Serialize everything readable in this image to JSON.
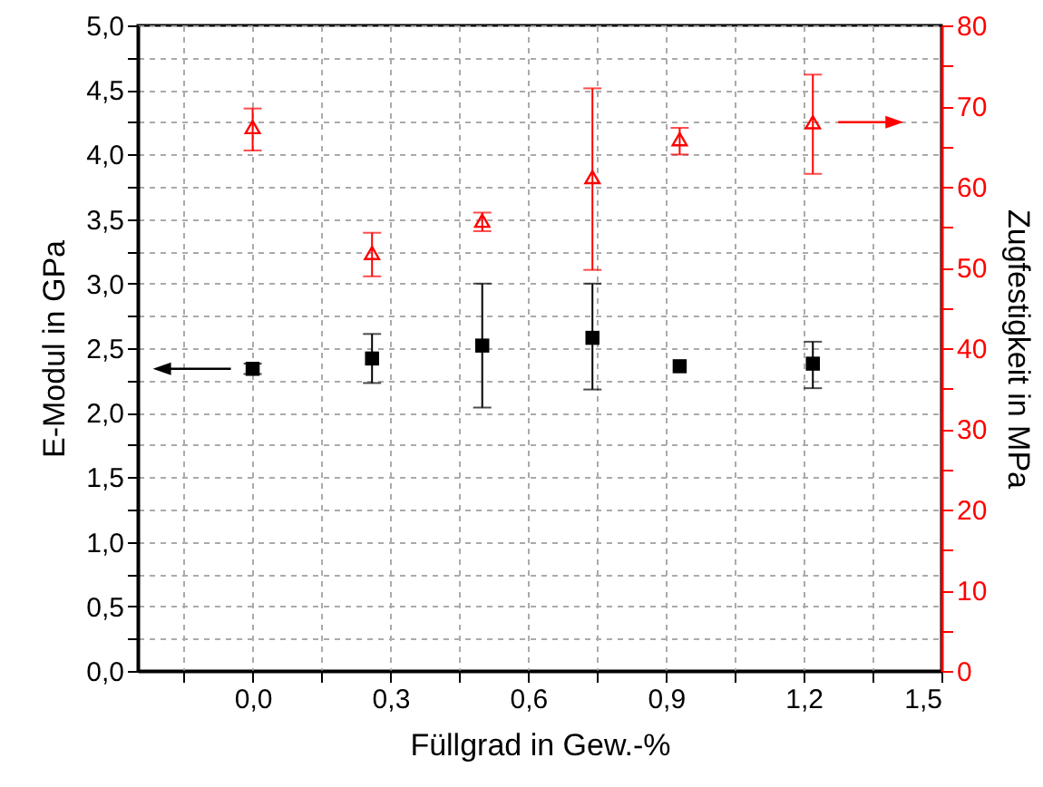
{
  "chart_data": {
    "type": "scatter",
    "xlabel": "Füllgrad in Gew.-%",
    "ylabel": "E-Modul in GPa",
    "y2label": "Zugfestigkeit in MPa",
    "x": [
      0.0,
      0.26,
      0.5,
      0.74,
      0.93,
      1.22
    ],
    "series": [
      {
        "color": "#000000",
        "marker": "square",
        "values": [
          2.34,
          2.42,
          2.52,
          2.58,
          2.36,
          2.38
        ],
        "errors": [
          [
            2.3,
            2.38
          ],
          [
            2.23,
            2.61
          ],
          [
            2.04,
            3.0
          ],
          [
            2.18,
            3.0
          ],
          null,
          [
            2.19,
            2.55
          ]
        ]
      },
      {
        "color": "#ff0000",
        "marker": "triangle",
        "axis": "y2",
        "values": [
          67.4,
          51.8,
          55.8,
          61.2,
          65.9,
          68.0
        ],
        "errors": [
          [
            64.5,
            69.7
          ],
          [
            48.9,
            54.3
          ],
          [
            54.5,
            56.8
          ],
          [
            49.7,
            72.2
          ],
          [
            64.0,
            67.3
          ],
          [
            61.6,
            73.9
          ]
        ]
      }
    ],
    "xlim": [
      -0.25,
      1.5
    ],
    "xticks": [
      {
        "value": -0.15,
        "label": null
      },
      {
        "value": 0,
        "label": "0,0"
      },
      {
        "value": 0.15,
        "label": null
      },
      {
        "value": 0.3,
        "label": "0,3"
      },
      {
        "value": 0.45,
        "label": null
      },
      {
        "value": 0.6,
        "label": "0,6"
      },
      {
        "value": 0.75,
        "label": null
      },
      {
        "value": 0.9,
        "label": "0,9"
      },
      {
        "value": 1.05,
        "label": null
      },
      {
        "value": 1.2,
        "label": "1,2"
      },
      {
        "value": 1.35,
        "label": null
      },
      {
        "value": 1.5,
        "label": "1,5"
      }
    ],
    "ylim": [
      0,
      5
    ],
    "yticks": [
      {
        "value": 0,
        "label": "0,0"
      },
      {
        "value": 0.25,
        "label": null
      },
      {
        "value": 0.5,
        "label": "0,5"
      },
      {
        "value": 0.75,
        "label": null
      },
      {
        "value": 1,
        "label": "1,0"
      },
      {
        "value": 1.25,
        "label": null
      },
      {
        "value": 1.5,
        "label": "1,5"
      },
      {
        "value": 1.75,
        "label": null
      },
      {
        "value": 2,
        "label": "2,0"
      },
      {
        "value": 2.25,
        "label": null
      },
      {
        "value": 2.5,
        "label": "2,5"
      },
      {
        "value": 2.75,
        "label": null
      },
      {
        "value": 3,
        "label": "3,0"
      },
      {
        "value": 3.25,
        "label": null
      },
      {
        "value": 3.5,
        "label": "3,5"
      },
      {
        "value": 3.75,
        "label": null
      },
      {
        "value": 4,
        "label": "4,0"
      },
      {
        "value": 4.25,
        "label": null
      },
      {
        "value": 4.5,
        "label": "4,5"
      },
      {
        "value": 4.75,
        "label": null
      },
      {
        "value": 5,
        "label": "5,0"
      }
    ],
    "y2lim": [
      0,
      80
    ],
    "y2ticks": [
      0,
      {
        "value": 5,
        "label": null
      },
      10,
      {
        "value": 15,
        "label": null
      },
      20,
      {
        "value": 25,
        "label": null
      },
      30,
      {
        "value": 35,
        "label": null
      },
      40,
      {
        "value": 45,
        "label": null
      },
      50,
      {
        "value": 55,
        "label": null
      },
      60,
      {
        "value": 65,
        "label": null
      },
      70,
      {
        "value": 75,
        "label": null
      },
      80
    ],
    "grid": true
  }
}
